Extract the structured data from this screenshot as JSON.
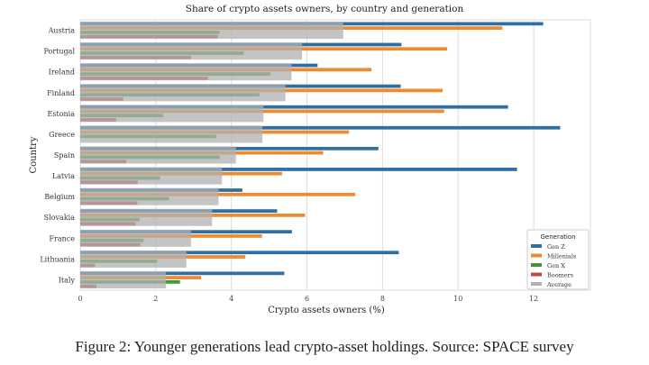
{
  "chart_data": {
    "type": "bar",
    "orientation": "horizontal",
    "title": "Share of crypto assets owners, by country and generation",
    "xlabel": "Crypto assets owners (%)",
    "ylabel": "Country",
    "xlim": [
      0,
      13.5
    ],
    "xticks": [
      0,
      2,
      4,
      6,
      8,
      10,
      12
    ],
    "grid": true,
    "legend_title": "Generation",
    "legend_position": "bottom-right",
    "categories": [
      "Austria",
      "Portugal",
      "Ireland",
      "Finland",
      "Estonia",
      "Greece",
      "Spain",
      "Latvia",
      "Belgium",
      "Slovakia",
      "France",
      "Lithuania",
      "Italy"
    ],
    "series": [
      {
        "name": "Gen Z",
        "color": "#2f6fa3",
        "values": [
          12.25,
          8.5,
          6.28,
          8.48,
          11.32,
          12.7,
          7.89,
          11.56,
          4.29,
          5.21,
          5.6,
          8.43,
          5.4
        ]
      },
      {
        "name": "Millenials",
        "color": "#ee8a30",
        "values": [
          11.17,
          9.71,
          7.71,
          9.59,
          9.63,
          7.11,
          6.43,
          5.34,
          7.28,
          5.95,
          4.81,
          4.37,
          3.2
        ]
      },
      {
        "name": "Gen X",
        "color": "#3a9a3a",
        "values": [
          3.69,
          4.33,
          5.03,
          4.74,
          2.19,
          3.6,
          3.69,
          2.11,
          2.35,
          1.57,
          1.68,
          2.04,
          2.64
        ]
      },
      {
        "name": "Boomers",
        "color": "#c0474a",
        "values": [
          3.64,
          2.93,
          3.38,
          1.14,
          0.95,
          0.0,
          1.22,
          1.52,
          1.51,
          1.46,
          1.59,
          0.39,
          0.43
        ]
      },
      {
        "name": "Average",
        "color": "#b0b0b0",
        "values": [
          6.96,
          5.87,
          5.59,
          5.43,
          4.85,
          4.82,
          4.12,
          3.75,
          3.66,
          3.49,
          2.93,
          2.81,
          2.27
        ]
      }
    ]
  },
  "caption": "Figure 2: Younger generations lead crypto-asset holdings. Source: SPACE survey"
}
